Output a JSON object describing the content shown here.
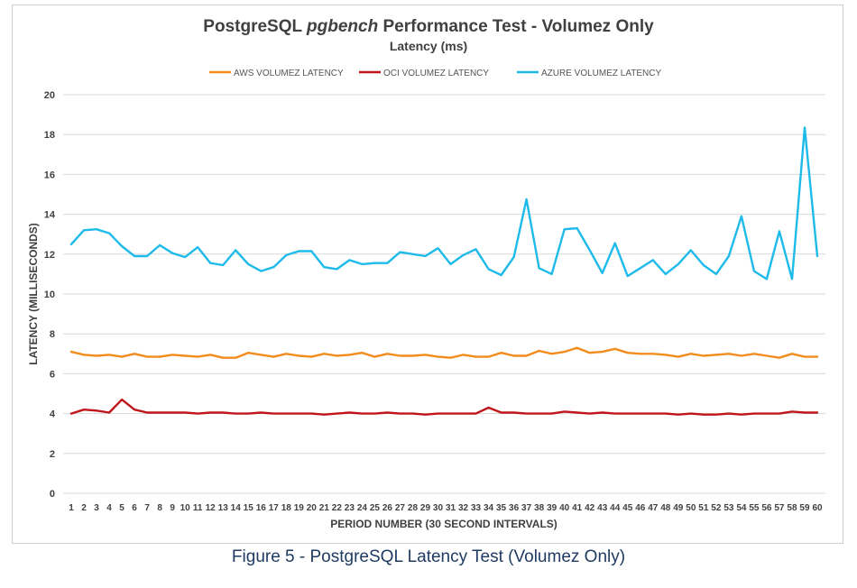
{
  "chart_data": {
    "type": "line",
    "title_prefix": "PostgreSQL ",
    "title_em": "pgbench",
    "title_suffix": " Performance Test - Volumez Only",
    "subtitle": "Latency (ms)",
    "xlabel": "PERIOD NUMBER (30 SECOND INTERVALS)",
    "ylabel": "LATENCY (MILLISECONDS)",
    "ylim": [
      0,
      20
    ],
    "yticks": [
      0,
      2,
      4,
      6,
      8,
      10,
      12,
      14,
      16,
      18,
      20
    ],
    "grid": true,
    "legend_position": "top-center",
    "x": [
      1,
      2,
      3,
      4,
      5,
      6,
      7,
      8,
      9,
      10,
      11,
      12,
      13,
      14,
      15,
      16,
      17,
      18,
      19,
      20,
      21,
      22,
      23,
      24,
      25,
      26,
      27,
      28,
      29,
      30,
      31,
      32,
      33,
      34,
      35,
      36,
      37,
      38,
      39,
      40,
      41,
      42,
      43,
      44,
      45,
      46,
      47,
      48,
      49,
      50,
      51,
      52,
      53,
      54,
      55,
      56,
      57,
      58,
      59,
      60
    ],
    "series": [
      {
        "name": "AWS VOLUMEZ LATENCY",
        "color": "#f28c1c",
        "values": [
          7.1,
          6.95,
          6.9,
          6.95,
          6.85,
          7.0,
          6.85,
          6.85,
          6.95,
          6.9,
          6.85,
          6.95,
          6.8,
          6.8,
          7.05,
          6.95,
          6.85,
          7.0,
          6.9,
          6.85,
          7.0,
          6.9,
          6.95,
          7.05,
          6.85,
          7.0,
          6.9,
          6.9,
          6.95,
          6.85,
          6.8,
          6.95,
          6.85,
          6.85,
          7.05,
          6.9,
          6.9,
          7.15,
          7.0,
          7.1,
          7.3,
          7.05,
          7.1,
          7.25,
          7.05,
          7.0,
          7.0,
          6.95,
          6.85,
          7.0,
          6.9,
          6.95,
          7.0,
          6.9,
          7.0,
          6.9,
          6.8,
          7.0,
          6.85,
          6.85
        ]
      },
      {
        "name": "OCI VOLUMEZ LATENCY",
        "color": "#c0161b",
        "values": [
          4.0,
          4.2,
          4.15,
          4.05,
          4.7,
          4.2,
          4.05,
          4.05,
          4.05,
          4.05,
          4.0,
          4.05,
          4.05,
          4.0,
          4.0,
          4.05,
          4.0,
          4.0,
          4.0,
          4.0,
          3.95,
          4.0,
          4.05,
          4.0,
          4.0,
          4.05,
          4.0,
          4.0,
          3.95,
          4.0,
          4.0,
          4.0,
          4.0,
          4.3,
          4.05,
          4.05,
          4.0,
          4.0,
          4.0,
          4.1,
          4.05,
          4.0,
          4.05,
          4.0,
          4.0,
          4.0,
          4.0,
          4.0,
          3.95,
          4.0,
          3.95,
          3.95,
          4.0,
          3.95,
          4.0,
          4.0,
          4.0,
          4.1,
          4.05,
          4.05
        ]
      },
      {
        "name": "AZURE VOLUMEZ LATENCY",
        "color": "#1ebbea",
        "values": [
          12.5,
          13.2,
          13.25,
          13.05,
          12.4,
          11.9,
          11.9,
          12.45,
          12.05,
          11.85,
          12.35,
          11.55,
          11.45,
          12.2,
          11.5,
          11.15,
          11.35,
          11.95,
          12.15,
          12.15,
          11.35,
          11.25,
          11.7,
          11.5,
          11.55,
          11.55,
          12.1,
          12.0,
          11.9,
          12.3,
          11.5,
          11.95,
          12.25,
          11.25,
          10.95,
          11.85,
          14.75,
          11.3,
          11.0,
          13.25,
          13.3,
          12.2,
          11.05,
          12.55,
          10.9,
          11.3,
          11.7,
          11.0,
          11.5,
          12.2,
          11.45,
          11.0,
          11.9,
          13.9,
          11.15,
          10.75,
          13.15,
          10.75,
          18.35,
          11.9
        ]
      }
    ]
  },
  "caption": "Figure 5 - PostgreSQL Latency Test (Volumez Only)"
}
